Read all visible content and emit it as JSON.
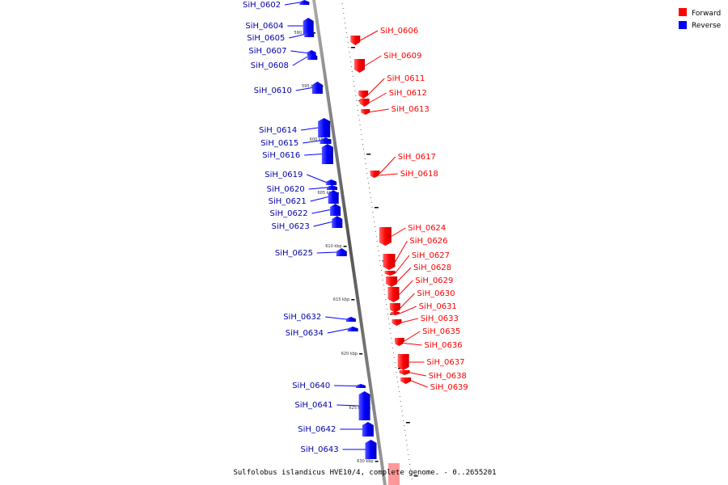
{
  "legend": [
    {
      "label": "Forward",
      "color": "#ff0000"
    },
    {
      "label": "Reverse",
      "color": "#0000ff"
    }
  ],
  "caption": "Sulfolobus islandicus HVE10/4, complete genome. - 0..2655201",
  "forward_genes": [
    {
      "id": "SiH_0606"
    },
    {
      "id": "SiH_0609"
    },
    {
      "id": "SiH_0611"
    },
    {
      "id": "SiH_0612"
    },
    {
      "id": "SiH_0613"
    },
    {
      "id": "SiH_0617"
    },
    {
      "id": "SiH_0618"
    },
    {
      "id": "SiH_0624"
    },
    {
      "id": "SiH_0626"
    },
    {
      "id": "SiH_0627"
    },
    {
      "id": "SiH_0628"
    },
    {
      "id": "SiH_0629"
    },
    {
      "id": "SiH_0630"
    },
    {
      "id": "SiH_0631"
    },
    {
      "id": "SiH_0633"
    },
    {
      "id": "SiH_0635"
    },
    {
      "id": "SiH_0636"
    },
    {
      "id": "SiH_0637"
    },
    {
      "id": "SiH_0638"
    },
    {
      "id": "SiH_0639"
    }
  ],
  "reverse_genes": [
    {
      "id": "SiH_0602"
    },
    {
      "id": "SiH_0604"
    },
    {
      "id": "SiH_0605"
    },
    {
      "id": "SiH_0607"
    },
    {
      "id": "SiH_0608"
    },
    {
      "id": "SiH_0610"
    },
    {
      "id": "SiH_0614"
    },
    {
      "id": "SiH_0615"
    },
    {
      "id": "SiH_0616"
    },
    {
      "id": "SiH_0619"
    },
    {
      "id": "SiH_0620"
    },
    {
      "id": "SiH_0621"
    },
    {
      "id": "SiH_0622"
    },
    {
      "id": "SiH_0623"
    },
    {
      "id": "SiH_0625"
    },
    {
      "id": "SiH_0632"
    },
    {
      "id": "SiH_0634"
    },
    {
      "id": "SiH_0640"
    },
    {
      "id": "SiH_0641"
    },
    {
      "id": "SiH_0642"
    },
    {
      "id": "SiH_0643"
    }
  ],
  "ticks": [
    "590 kbp",
    "595 kbp",
    "600 kbp",
    "605 kbp",
    "610 kbp",
    "615 kbp",
    "620 kbp",
    "625 kbp",
    "630 kbp"
  ]
}
